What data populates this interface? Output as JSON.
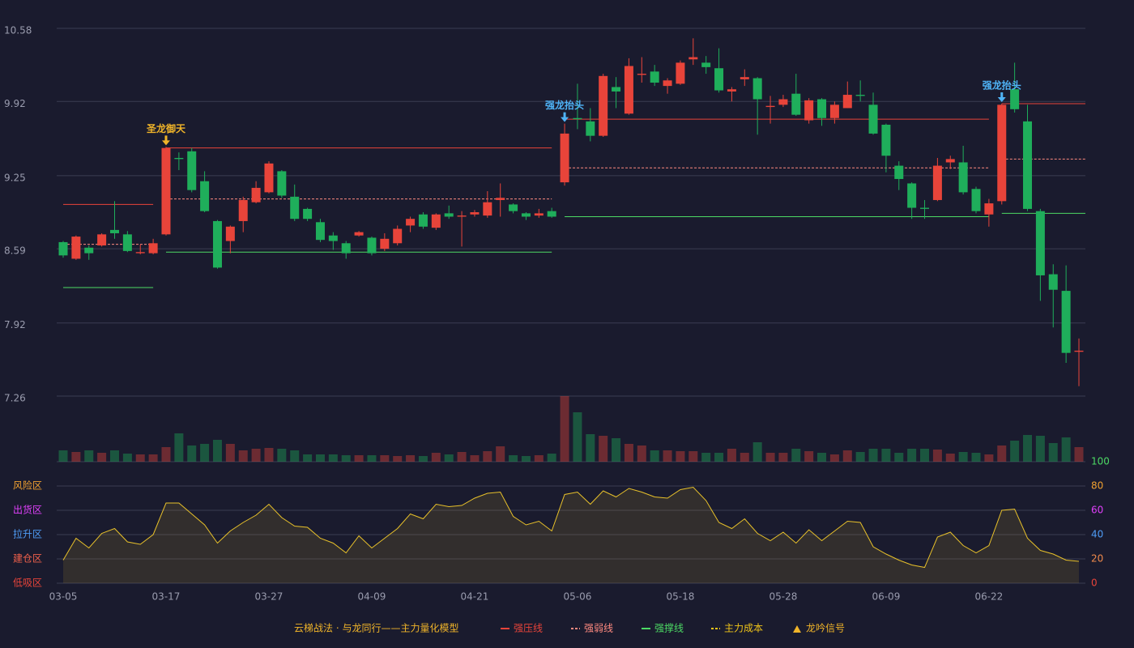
{
  "chart_data": {
    "type": "candlestick",
    "categories": [
      "03-05",
      null,
      null,
      null,
      null,
      null,
      null,
      null,
      "03-17",
      null,
      null,
      null,
      null,
      null,
      null,
      null,
      "03-27",
      null,
      null,
      null,
      null,
      null,
      null,
      null,
      "04-09",
      null,
      null,
      null,
      null,
      null,
      null,
      null,
      "04-21",
      null,
      null,
      null,
      null,
      null,
      null,
      null,
      "05-06",
      null,
      null,
      null,
      null,
      null,
      null,
      null,
      "05-18",
      null,
      null,
      null,
      null,
      null,
      null,
      null,
      "05-28",
      null,
      null,
      null,
      null,
      null,
      null,
      null,
      "06-09",
      null,
      null,
      null,
      null,
      null,
      null,
      null,
      "06-22",
      null,
      null,
      null,
      null,
      null,
      null,
      null
    ],
    "open": [
      8.65,
      8.5,
      8.6,
      8.62,
      8.76,
      8.72,
      8.55,
      8.55,
      8.72,
      9.41,
      9.47,
      9.2,
      8.84,
      8.66,
      8.84,
      9.01,
      9.1,
      9.29,
      9.06,
      8.95,
      8.83,
      8.71,
      8.64,
      8.71,
      8.69,
      8.59,
      8.64,
      8.8,
      8.9,
      8.78,
      8.91,
      8.88,
      8.9,
      8.89,
      9.03,
      8.99,
      8.91,
      8.89,
      8.93,
      9.19,
      9.77,
      9.74,
      9.61,
      10.05,
      9.81,
      10.16,
      10.19,
      10.06,
      10.08,
      10.3,
      10.27,
      10.22,
      10.01,
      10.12,
      10.13,
      9.87,
      9.89,
      9.99,
      9.75,
      9.94,
      9.77,
      9.86,
      9.98,
      9.89,
      9.71,
      9.34,
      9.18,
      8.96,
      9.03,
      9.37,
      9.37,
      9.13,
      8.9,
      9.02,
      10.03,
      9.74,
      8.93,
      8.36,
      8.21,
      7.66
    ],
    "close": [
      8.53,
      8.7,
      8.55,
      8.72,
      8.73,
      8.57,
      8.56,
      8.64,
      9.5,
      9.4,
      9.12,
      8.93,
      8.42,
      8.79,
      9.03,
      9.14,
      9.36,
      9.07,
      8.86,
      8.86,
      8.67,
      8.66,
      8.55,
      8.74,
      8.55,
      8.68,
      8.77,
      8.86,
      8.79,
      8.9,
      8.88,
      8.89,
      8.92,
      9.01,
      9.05,
      8.93,
      8.88,
      8.91,
      8.88,
      9.63,
      9.76,
      9.61,
      10.15,
      10.01,
      10.24,
      10.17,
      10.09,
      10.11,
      10.27,
      10.32,
      10.23,
      10.02,
      10.03,
      10.14,
      9.94,
      9.88,
      9.94,
      9.8,
      9.93,
      9.77,
      9.89,
      9.98,
      9.97,
      9.63,
      9.43,
      9.22,
      8.96,
      8.95,
      9.34,
      9.4,
      9.1,
      8.93,
      9.0,
      9.89,
      9.85,
      8.95,
      8.35,
      8.22,
      7.65,
      7.67
    ],
    "high": [
      8.66,
      8.71,
      8.62,
      8.73,
      9.02,
      8.75,
      8.63,
      8.68,
      9.51,
      9.46,
      9.5,
      9.29,
      8.85,
      8.8,
      9.06,
      9.2,
      9.38,
      9.3,
      9.17,
      8.96,
      8.86,
      8.74,
      8.66,
      8.75,
      8.7,
      8.73,
      8.8,
      8.88,
      8.92,
      8.91,
      8.98,
      8.93,
      8.94,
      9.11,
      9.18,
      9.0,
      8.92,
      8.95,
      8.96,
      9.72,
      10.08,
      9.86,
      10.17,
      10.14,
      10.31,
      10.32,
      10.25,
      10.13,
      10.29,
      10.49,
      10.33,
      10.4,
      10.05,
      10.21,
      10.14,
      9.97,
      9.98,
      10.17,
      9.95,
      9.95,
      9.92,
      10.1,
      10.11,
      10.0,
      9.72,
      9.38,
      9.19,
      9.03,
      9.41,
      9.43,
      9.52,
      9.15,
      9.04,
      9.9,
      10.27,
      9.89,
      8.95,
      8.45,
      8.44,
      7.78
    ],
    "low": [
      8.51,
      8.49,
      8.49,
      8.61,
      8.68,
      8.56,
      8.54,
      8.54,
      8.71,
      9.3,
      9.1,
      8.92,
      8.41,
      8.55,
      8.74,
      9.0,
      9.09,
      9.05,
      8.84,
      8.84,
      8.65,
      8.58,
      8.5,
      8.7,
      8.53,
      8.57,
      8.62,
      8.74,
      8.77,
      8.76,
      8.86,
      8.61,
      8.88,
      8.87,
      8.88,
      8.91,
      8.85,
      8.87,
      8.87,
      9.16,
      9.67,
      9.56,
      9.6,
      9.86,
      9.8,
      10.09,
      10.06,
      9.99,
      10.07,
      10.25,
      10.17,
      10.0,
      9.92,
      10.06,
      9.62,
      9.72,
      9.87,
      9.79,
      9.72,
      9.7,
      9.72,
      9.86,
      9.92,
      9.62,
      9.28,
      9.12,
      8.86,
      8.86,
      9.02,
      9.31,
      9.08,
      8.91,
      8.79,
      8.99,
      9.82,
      8.93,
      8.12,
      7.88,
      7.56,
      7.35
    ],
    "ylim": [
      7.26,
      10.58
    ],
    "yticks": [
      10.58,
      9.92,
      9.25,
      8.59,
      7.92,
      7.26
    ],
    "up_color": "#e8443a",
    "down_color": "#1fae5b",
    "levels": [
      {
        "name": "强压线",
        "color": "#e8443a",
        "dashed": false,
        "segments": [
          {
            "from": 0,
            "to": 7,
            "value": 8.99
          },
          {
            "from": 8,
            "to": 38,
            "value": 9.5
          },
          {
            "from": 39,
            "to": 72,
            "value": 9.76
          },
          {
            "from": 73,
            "to": 79,
            "value": 9.9
          }
        ]
      },
      {
        "name": "强弱线",
        "color": "#ff8a80",
        "dashed": true,
        "segments": [
          {
            "from": 0,
            "to": 7,
            "value": 8.63
          },
          {
            "from": 8,
            "to": 38,
            "value": 9.04
          },
          {
            "from": 39,
            "to": 72,
            "value": 9.32
          },
          {
            "from": 73,
            "to": 79,
            "value": 9.4
          }
        ]
      },
      {
        "name": "强撑线",
        "color": "#4cd964",
        "dashed": false,
        "segments": [
          {
            "from": 0,
            "to": 7,
            "value": 8.24
          },
          {
            "from": 8,
            "to": 38,
            "value": 8.56
          },
          {
            "from": 39,
            "to": 72,
            "value": 8.88
          },
          {
            "from": 73,
            "to": 79,
            "value": 8.91
          }
        ]
      },
      {
        "name": "主力成本",
        "color": "#f0c419",
        "dashed": true,
        "segments": []
      }
    ],
    "signals": [
      {
        "index": 8,
        "label": "圣龙御天",
        "color": "#f0b429"
      },
      {
        "index": 39,
        "label": "强龙抬头",
        "color": "#4fb3f6"
      },
      {
        "index": 73,
        "label": "强龙抬头",
        "color": "#4fb3f6"
      }
    ],
    "signal_legend": {
      "label": "龙吟信号",
      "color": "#f0b429"
    },
    "legend_title": "云梯战法 · 与龙同行——主力量化模型",
    "volume": {
      "values": [
        14,
        12,
        14,
        11,
        14,
        10,
        9,
        9,
        18,
        35,
        20,
        22,
        27,
        22,
        14,
        16,
        17,
        16,
        14,
        9,
        9,
        9,
        8,
        8,
        8,
        8,
        7,
        8,
        7,
        11,
        9,
        12,
        8,
        13,
        19,
        8,
        7,
        8,
        10,
        81,
        61,
        34,
        32,
        29,
        22,
        20,
        14,
        14,
        13,
        13,
        11,
        11,
        16,
        11,
        24,
        11,
        11,
        16,
        13,
        11,
        9,
        14,
        12,
        16,
        16,
        11,
        16,
        16,
        15,
        10,
        12,
        11,
        9,
        20,
        26,
        33,
        32,
        23,
        30,
        18
      ]
    },
    "oscillator": {
      "values": [
        19,
        37,
        29,
        41,
        45,
        34,
        32,
        40,
        66,
        66,
        57,
        48,
        33,
        43,
        50,
        56,
        65,
        54,
        47,
        46,
        37,
        33,
        25,
        39,
        29,
        37,
        45,
        57,
        53,
        65,
        63,
        64,
        70,
        74,
        75,
        55,
        48,
        51,
        43,
        73,
        75,
        65,
        76,
        71,
        78,
        75,
        71,
        70,
        77,
        79,
        68,
        50,
        45,
        53,
        41,
        35,
        42,
        33,
        44,
        35,
        43,
        51,
        50,
        30,
        24,
        19,
        15,
        13,
        38,
        42,
        31,
        25,
        31,
        60,
        61,
        37,
        27,
        24,
        19,
        18
      ],
      "color": "#e8c12a",
      "ylim": [
        0,
        100
      ],
      "yticks": [
        0,
        20,
        40,
        60,
        80,
        100
      ],
      "tick_colors": [
        "#e8443a",
        "#f08a4b",
        "#4f9df6",
        "#e040fb",
        "#f0a030",
        "#4cd964"
      ],
      "zones": [
        {
          "value": 80,
          "label": "风险区",
          "color": "#f0a030"
        },
        {
          "value": 60,
          "label": "出货区",
          "color": "#e040fb"
        },
        {
          "value": 40,
          "label": "拉升区",
          "color": "#4f9df6"
        },
        {
          "value": 20,
          "label": "建仓区",
          "color": "#f0604b"
        },
        {
          "value": 0,
          "label": "低吸区",
          "color": "#e8443a"
        }
      ]
    }
  }
}
